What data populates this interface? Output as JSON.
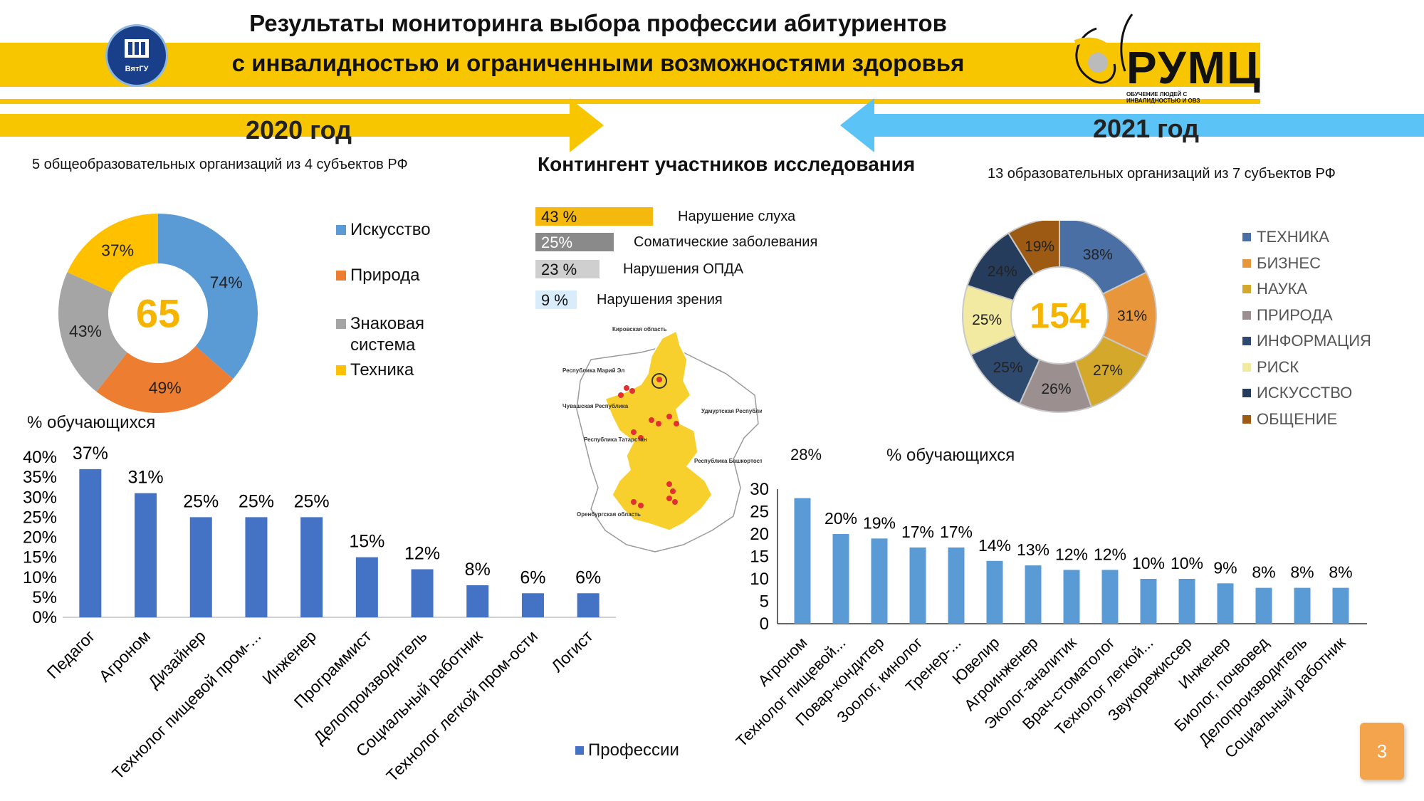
{
  "header": {
    "title_line1": "Результаты мониторинга выбора профессии абитуриентов",
    "title_line2": "с инвалидностью и ограниченными возможностями здоровья",
    "left_logo_text": "ВятГУ",
    "right_logo_text": "РУМЦ",
    "right_logo_sub": "ОБУЧЕНИЕ ЛЮДЕЙ С ИНВАЛИДНОСТЬЮ И ОВЗ"
  },
  "year2020": {
    "label": "2020 год",
    "subtitle": "5 общеобразовательных организаций из 4 субъектов РФ"
  },
  "year2021": {
    "label": "2021 год",
    "subtitle": "13 образовательных организаций  из 7 субъектов РФ"
  },
  "contingent": {
    "title": "Контингент участников исследования",
    "items": [
      {
        "value": "43 %",
        "label": "Нарушение слуха",
        "color": "#f5b80f"
      },
      {
        "value": "25%",
        "label": "Соматические заболевания",
        "color": "#8a8a8a"
      },
      {
        "value": "23 %",
        "label": "Нарушения ОПДА",
        "color": "#cfcfcf"
      },
      {
        "value": "9 %",
        "label": "Нарушения зрения",
        "color": "#d9ecfb"
      }
    ]
  },
  "map": {
    "labels": [
      "Кировская область",
      "Республика Марий Эл",
      "Чувашская Республика",
      "Удмуртская Республика",
      "Республика Татарстан",
      "Республика Башкортостан",
      "Оренбургская область"
    ]
  },
  "slide_number": "3",
  "chart_data": [
    {
      "id": "donut-2020",
      "type": "pie",
      "center_value": "65",
      "categories": [
        "Искусство",
        "Природа",
        "Знаковая система",
        "Техника"
      ],
      "values": [
        74,
        49,
        43,
        37
      ],
      "labels": [
        "74%",
        "49%",
        "43%",
        "37%"
      ],
      "colors": [
        "#5b9bd5",
        "#ed7d31",
        "#a5a5a5",
        "#ffc000"
      ],
      "legend_position": "right"
    },
    {
      "id": "donut-2021",
      "type": "pie",
      "center_value": "154",
      "categories": [
        "ТЕХНИКА",
        "БИЗНЕС",
        "НАУКА",
        "ПРИРОДА",
        "ИНФОРМАЦИЯ",
        "РИСК",
        "ИСКУССТВО",
        "ОБЩЕНИЕ"
      ],
      "values": [
        38,
        31,
        27,
        26,
        25,
        25,
        24,
        19
      ],
      "labels": [
        "38%",
        "31%",
        "27%",
        "26%",
        "25%",
        "25%",
        "24%",
        "19%"
      ],
      "colors": [
        "#4a6fa5",
        "#e8963c",
        "#d4a82a",
        "#9c8f8f",
        "#2e4a6e",
        "#f2eaa0",
        "#263c5c",
        "#9c5a12"
      ],
      "legend_position": "right"
    },
    {
      "id": "bars-2020",
      "type": "bar",
      "ylabel": "% обучающихся",
      "categories": [
        "Педагог",
        "Агроном",
        "Дизайнер",
        "Технолог пищевой пром-...",
        "Инженер",
        "Программист",
        "Делопроизводитель",
        "Социальный работник",
        "Технолог легкой пром-ости",
        "Логист"
      ],
      "series": [
        {
          "name": "Профессии",
          "values": [
            37,
            31,
            25,
            25,
            25,
            15,
            12,
            8,
            6,
            6
          ]
        }
      ],
      "data_labels": [
        "37%",
        "31%",
        "25%",
        "25%",
        "25%",
        "15%",
        "12%",
        "8%",
        "6%",
        "6%"
      ],
      "yticks": [
        "0%",
        "5%",
        "10%",
        "15%",
        "20%",
        "25%",
        "30%",
        "35%",
        "40%"
      ],
      "ylim": [
        0,
        40
      ],
      "color": "#4472c4",
      "legend_position": "bottom"
    },
    {
      "id": "bars-2021",
      "type": "bar",
      "ylabel": "% обучающихся",
      "categories": [
        "Агроном",
        "Технолог пищевой...",
        "Повар-кондитер",
        "Зоолог, кинолог",
        "Тренер-...",
        "Ювелир",
        "Агроинженер",
        "Эколог-аналитик",
        "Врач-стоматолог",
        "Технолог легкой...",
        "Звукорежиссер",
        "Инженер",
        "Биолог, почвовед",
        "Делопроизводитель",
        "Социальный работник"
      ],
      "values": [
        28,
        20,
        19,
        17,
        17,
        14,
        13,
        12,
        12,
        10,
        10,
        9,
        8,
        8,
        8
      ],
      "data_labels": [
        "28%",
        "20%",
        "19%",
        "17%",
        "17%",
        "14%",
        "13%",
        "12%",
        "12%",
        "10%",
        "10%",
        "9%",
        "8%",
        "8%",
        "8%"
      ],
      "yticks": [
        "0",
        "5",
        "10",
        "15",
        "20",
        "25",
        "30"
      ],
      "ylim": [
        0,
        30
      ],
      "color": "#5b9bd5"
    }
  ]
}
